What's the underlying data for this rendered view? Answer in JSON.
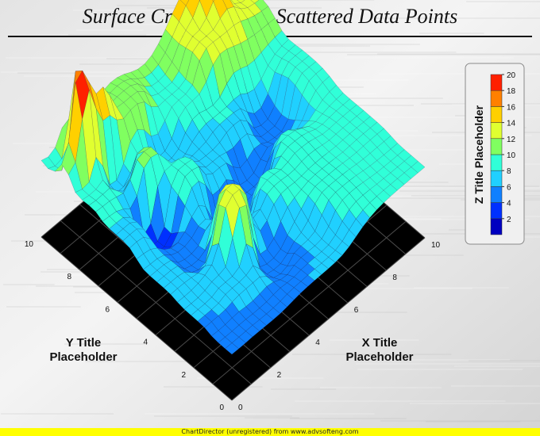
{
  "chart_data": {
    "type": "surface",
    "title": "Surface Created Using Scattered Data Points",
    "xlabel": "X Title Placeholder",
    "ylabel": "Y Title Placeholder",
    "zlabel": "Z Title Placeholder",
    "xlim": [
      0,
      10
    ],
    "ylim": [
      0,
      10
    ],
    "zlim": [
      0,
      20
    ],
    "x_ticks": [
      0,
      2,
      4,
      6,
      8,
      10
    ],
    "y_ticks": [
      0,
      2,
      4,
      6,
      8,
      10
    ],
    "z_ticks": [
      2,
      4,
      6,
      8,
      10,
      12,
      14,
      16,
      18,
      20
    ],
    "legend_position": "top-right",
    "colorscale": [
      "#0000c0",
      "#0030ff",
      "#1080ff",
      "#20d0ff",
      "#30ffd8",
      "#80ff60",
      "#e0ff30",
      "#ffd000",
      "#ff8000",
      "#ff2000"
    ],
    "scattered_points": [
      {
        "x": 0.5,
        "y": 0.5,
        "z": 5.5
      },
      {
        "x": 0.5,
        "y": 2.0,
        "z": 6.0
      },
      {
        "x": 0.5,
        "y": 4.0,
        "z": 6.5
      },
      {
        "x": 0.5,
        "y": 6.0,
        "z": 8.0
      },
      {
        "x": 0.5,
        "y": 8.0,
        "z": 8.5
      },
      {
        "x": 0.5,
        "y": 9.5,
        "z": 8.5
      },
      {
        "x": 2.0,
        "y": 0.5,
        "z": 5.5
      },
      {
        "x": 2.0,
        "y": 2.0,
        "z": 6.5
      },
      {
        "x": 2.0,
        "y": 4.0,
        "z": 5.0
      },
      {
        "x": 2.0,
        "y": 6.0,
        "z": 3.0
      },
      {
        "x": 2.0,
        "y": 8.0,
        "z": 6.0
      },
      {
        "x": 2.0,
        "y": 9.5,
        "z": 8.0
      },
      {
        "x": 3.0,
        "y": 3.0,
        "z": 13.5
      },
      {
        "x": 3.5,
        "y": 6.0,
        "z": 9.5
      },
      {
        "x": 2.5,
        "y": 7.0,
        "z": 11.0
      },
      {
        "x": 1.0,
        "y": 9.0,
        "z": 20.0
      },
      {
        "x": 2.0,
        "y": 9.0,
        "z": 16.0
      },
      {
        "x": 3.5,
        "y": 9.0,
        "z": 12.0
      },
      {
        "x": 4.0,
        "y": 2.0,
        "z": 4.5
      },
      {
        "x": 4.5,
        "y": 4.5,
        "z": 2.5
      },
      {
        "x": 4.0,
        "y": 7.5,
        "z": 6.0
      },
      {
        "x": 5.0,
        "y": 1.0,
        "z": 6.0
      },
      {
        "x": 5.5,
        "y": 3.5,
        "z": 9.0
      },
      {
        "x": 5.0,
        "y": 6.0,
        "z": 7.0
      },
      {
        "x": 5.5,
        "y": 8.5,
        "z": 9.5
      },
      {
        "x": 6.0,
        "y": 5.0,
        "z": 4.0
      },
      {
        "x": 6.5,
        "y": 7.0,
        "z": 8.0
      },
      {
        "x": 7.0,
        "y": 2.0,
        "z": 9.0
      },
      {
        "x": 7.0,
        "y": 4.0,
        "z": 9.5
      },
      {
        "x": 7.0,
        "y": 8.5,
        "z": 13.0
      },
      {
        "x": 8.0,
        "y": 6.0,
        "z": 5.0
      },
      {
        "x": 8.0,
        "y": 9.5,
        "z": 15.5
      },
      {
        "x": 9.5,
        "y": 0.5,
        "z": 8.5
      },
      {
        "x": 9.5,
        "y": 3.0,
        "z": 9.0
      },
      {
        "x": 9.5,
        "y": 6.0,
        "z": 10.0
      },
      {
        "x": 9.5,
        "y": 9.5,
        "z": 12.0
      }
    ]
  },
  "footer": "ChartDirector (unregistered) from www.advsofteng.com"
}
